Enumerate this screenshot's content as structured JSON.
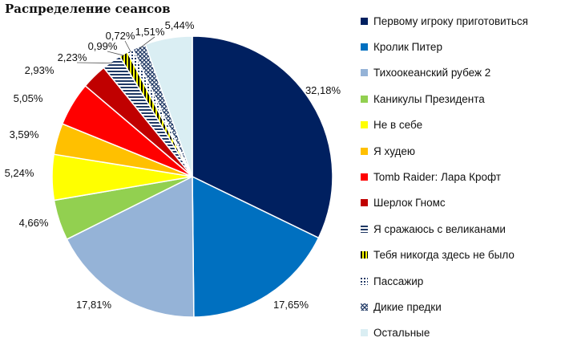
{
  "chart_data": {
    "type": "pie",
    "title": "Распределение сеансов",
    "start_angle_deg": 0,
    "direction": "clockwise",
    "legend_position": "right",
    "slices": [
      {
        "name": "Первому игроку приготовиться",
        "value": 32.18,
        "label": "32,18%",
        "color": "#002060",
        "pattern": "solid"
      },
      {
        "name": "Кролик Питер",
        "value": 17.65,
        "label": "17,65%",
        "color": "#0070C0",
        "pattern": "solid"
      },
      {
        "name": "Тихоокеанский рубеж 2",
        "value": 17.81,
        "label": "17,81%",
        "color": "#95B3D7",
        "pattern": "solid"
      },
      {
        "name": "Каникулы Президента",
        "value": 4.66,
        "label": "4,66%",
        "color": "#92D050",
        "pattern": "solid"
      },
      {
        "name": "Не в себе",
        "value": 5.24,
        "label": "5,24%",
        "color": "#FFFF00",
        "pattern": "solid"
      },
      {
        "name": "Я худею",
        "value": 3.59,
        "label": "3,59%",
        "color": "#FFC000",
        "pattern": "solid"
      },
      {
        "name": "Tomb Raider: Лара Крофт",
        "value": 5.05,
        "label": "5,05%",
        "color": "#FF0000",
        "pattern": "solid"
      },
      {
        "name": "Шерлок Гномс",
        "value": 2.93,
        "label": "2,93%",
        "color": "#C00000",
        "pattern": "solid"
      },
      {
        "name": "Я сражаюсь с великанами",
        "value": 2.23,
        "label": "2,23%",
        "color": "#1F3864",
        "pattern": "horizontal-stripes"
      },
      {
        "name": "Тебя никогда здесь не было",
        "value": 0.99,
        "label": "0,99%",
        "color": "#000000",
        "pattern": "vertical-stripes-yellow"
      },
      {
        "name": "Пассажир",
        "value": 0.72,
        "label": "0,72%",
        "color": "#1F3864",
        "pattern": "dots"
      },
      {
        "name": "Дикие предки",
        "value": 1.51,
        "label": "1,51%",
        "color": "#1F3864",
        "pattern": "diagonal-grid"
      },
      {
        "name": "Остальные",
        "value": 5.44,
        "label": "5,44%",
        "color": "#DAEEF3",
        "pattern": "solid"
      }
    ]
  }
}
